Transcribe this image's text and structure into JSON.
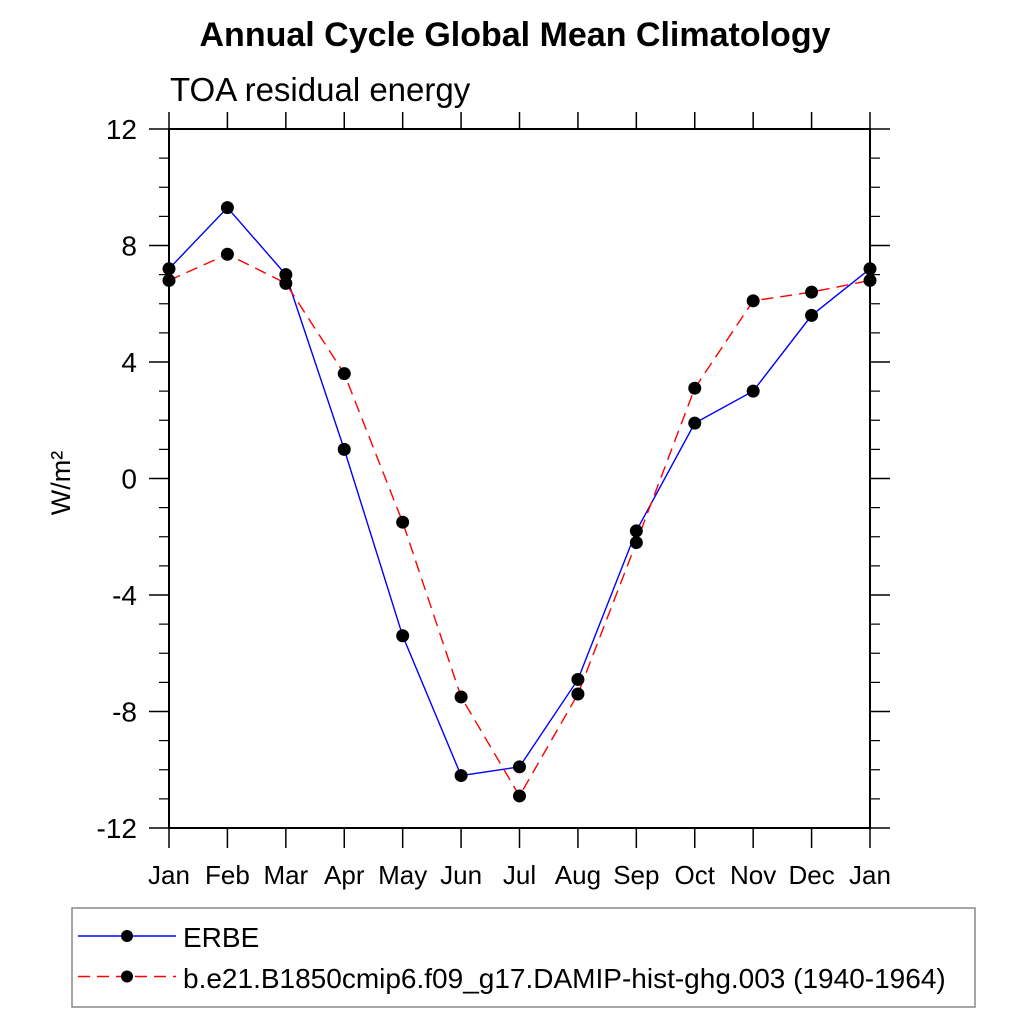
{
  "chart_data": {
    "type": "line",
    "title": "Annual Cycle Global Mean Climatology",
    "subtitle": "TOA residual energy",
    "ylabel": "W/m²",
    "xlabel": "",
    "x_labels": [
      "Jan",
      "Feb",
      "Mar",
      "Apr",
      "May",
      "Jun",
      "Jul",
      "Aug",
      "Sep",
      "Oct",
      "Nov",
      "Dec",
      "Jan"
    ],
    "ylim": [
      -12,
      12
    ],
    "ytick_major": [
      -12,
      -8,
      -4,
      0,
      4,
      8,
      12
    ],
    "ytick_minor_step": 1,
    "grid": false,
    "legend_position": "bottom",
    "axis_color": "#000000",
    "marker": "filled-circle",
    "marker_color": "#000000",
    "series": [
      {
        "name": "ERBE",
        "color": "#0000ff",
        "style": "solid",
        "values": [
          7.2,
          9.3,
          7.0,
          1.0,
          -5.4,
          -10.2,
          -9.9,
          -6.9,
          -1.8,
          1.9,
          3.0,
          5.6,
          7.2
        ]
      },
      {
        "name": "b.e21.B1850cmip6.f09_g17.DAMIP-hist-ghg.003 (1940-1964)",
        "color": "#ff0000",
        "style": "dashed",
        "values": [
          6.8,
          7.7,
          6.7,
          3.6,
          -1.5,
          -7.5,
          -10.9,
          -7.4,
          -2.2,
          3.1,
          6.1,
          6.4,
          6.8
        ]
      }
    ],
    "legend": {
      "border_color": "#888888"
    }
  }
}
